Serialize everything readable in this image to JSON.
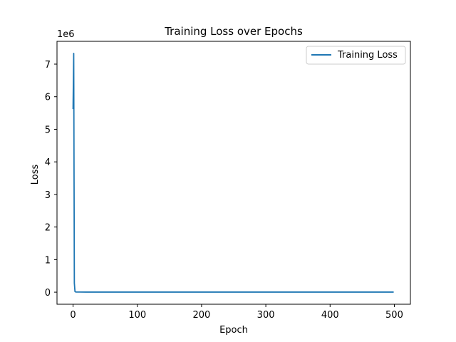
{
  "chart_data": {
    "type": "line",
    "title": "Training Loss over Epochs",
    "xlabel": "Epoch",
    "ylabel": "Loss",
    "y_multiplier_label": "1e6",
    "xlim": [
      -25,
      525
    ],
    "ylim": [
      -0.37,
      7.7
    ],
    "xticks": [
      0,
      100,
      200,
      300,
      400,
      500
    ],
    "yticks": [
      0,
      1,
      2,
      3,
      4,
      5,
      6,
      7
    ],
    "grid": false,
    "legend_position": "top-right",
    "series": [
      {
        "name": "Training Loss",
        "color": "#1f77b4",
        "x": [
          0,
          1,
          2,
          3,
          4,
          5,
          10,
          20,
          50,
          100,
          110,
          115,
          150,
          200,
          250,
          300,
          350,
          400,
          450,
          499
        ],
        "y": [
          5.62,
          7.33,
          0.28,
          0.02,
          0.008,
          0.005,
          0.004,
          0.003,
          0.003,
          0.003,
          0.005,
          0.003,
          0.003,
          0.003,
          0.003,
          0.003,
          0.003,
          0.003,
          0.003,
          0.003
        ]
      }
    ]
  }
}
